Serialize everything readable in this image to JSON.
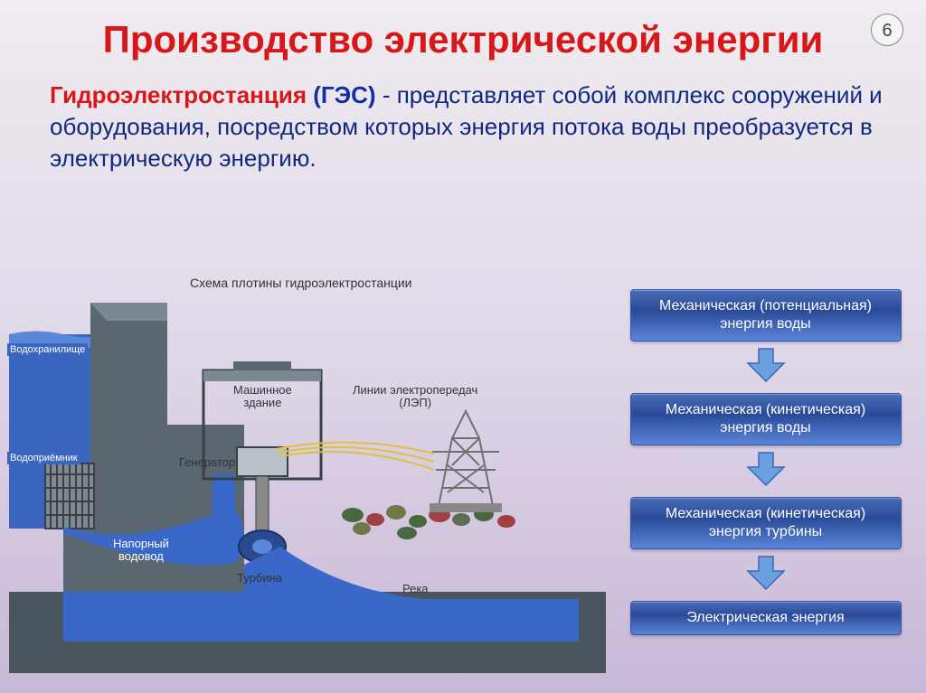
{
  "page_number": "6",
  "title": {
    "text": "Производство электрической энергии",
    "color": "#d81818"
  },
  "subtitle": {
    "term": "Гидроэлектростанция",
    "term_color": "#d81818",
    "abbrev": "(ГЭС)",
    "abbrev_color": "#1030a0",
    "rest": " -  представляет собой комплекс сооружений и оборудования, посредством которых энергия потока воды преобразуется в электрическую энергию.",
    "rest_color": "#102880"
  },
  "diagram": {
    "title": "Схема плотины гидроэлектростанции",
    "colors": {
      "dam": "#5b6770",
      "dam_light": "#7a8892",
      "water_surface": "#4a78c8",
      "water_deep": "#2a56a8",
      "water_flow": "#3a68c8",
      "sky": "#e8ecf2",
      "riverbed_green": "#4a6840",
      "riverbed_red": "#a04040",
      "grate": "#808890",
      "pylon": "#888888",
      "wire": "#e0c040",
      "generator_fill": "#b8c0c8"
    },
    "labels": {
      "reservoir": "Водохранилище",
      "intake": "Водоприёмник",
      "penstock": "Напорный\nводовод",
      "powerhouse": "Машинное\nздание",
      "generator": "Генератор",
      "turbine": "Турбина",
      "powerlines": "Линии электропередач\n(ЛЭП)",
      "river": "Река"
    }
  },
  "flow": {
    "arrow_fill": "#6aa0e0",
    "arrow_stroke": "#3a68b8",
    "boxes": [
      "Механическая (потенциальная)\nэнергия воды",
      "Механическая (кинетическая)\nэнергия воды",
      "Механическая (кинетическая)\nэнергия турбины",
      "Электрическая энергия"
    ]
  }
}
